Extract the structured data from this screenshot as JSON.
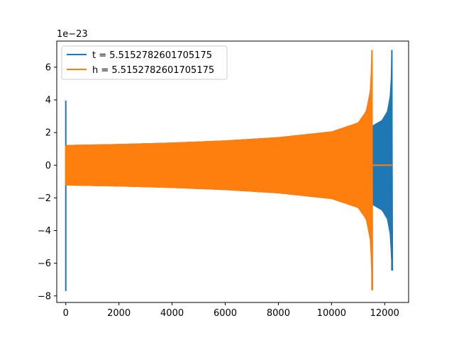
{
  "chart_data": {
    "type": "line",
    "title": "",
    "xlabel": "",
    "ylabel": "",
    "xlim": [
      -340,
      12900
    ],
    "ylim": [
      -8.4,
      7.6
    ],
    "y_offset_label": "1e−23",
    "x_ticks": [
      0,
      2000,
      4000,
      6000,
      8000,
      10000,
      12000
    ],
    "x_tick_labels": [
      "0",
      "2000",
      "4000",
      "6000",
      "8000",
      "10000",
      "12000"
    ],
    "y_ticks": [
      -8,
      -6,
      -4,
      -2,
      0,
      2,
      4,
      6
    ],
    "y_tick_labels": [
      "−8",
      "−6",
      "−4",
      "−2",
      "0",
      "2",
      "4",
      "6"
    ],
    "grid": false,
    "legend_position": "top-left",
    "series": [
      {
        "name": "t = 5.5152782601705175",
        "color": "#1f77b4",
        "spike_start": {
          "x": 0,
          "min": -7.7,
          "max": 3.95
        },
        "envelope": [
          {
            "x": 0,
            "amp": 1.22
          },
          {
            "x": 2000,
            "amp": 1.28
          },
          {
            "x": 4000,
            "amp": 1.37
          },
          {
            "x": 6000,
            "amp": 1.5
          },
          {
            "x": 8000,
            "amp": 1.7
          },
          {
            "x": 10000,
            "amp": 2.05
          },
          {
            "x": 11000,
            "amp": 2.25
          },
          {
            "x": 11530,
            "amp": 2.4
          },
          {
            "x": 11900,
            "amp": 2.75
          },
          {
            "x": 12100,
            "amp": 3.3
          },
          {
            "x": 12200,
            "amp": 4.2
          },
          {
            "x": 12250,
            "amp": 5.5
          }
        ],
        "spike_end": {
          "x": 12270,
          "min": -6.45,
          "max": 7.05
        },
        "end_x": 12280
      },
      {
        "name": "h = 5.5152782601705175",
        "color": "#ff7f0e",
        "spike_start": {
          "x": 0,
          "min": -1.2,
          "max": 1.2
        },
        "envelope": [
          {
            "x": 0,
            "amp": 1.22
          },
          {
            "x": 2000,
            "amp": 1.28
          },
          {
            "x": 4000,
            "amp": 1.37
          },
          {
            "x": 6000,
            "amp": 1.5
          },
          {
            "x": 8000,
            "amp": 1.7
          },
          {
            "x": 10000,
            "amp": 2.05
          },
          {
            "x": 11000,
            "amp": 2.6
          },
          {
            "x": 11300,
            "amp": 3.3
          },
          {
            "x": 11450,
            "amp": 4.5
          },
          {
            "x": 11500,
            "amp": 6.0
          }
        ],
        "spike_end": {
          "x": 11520,
          "min": -7.65,
          "max": 7.05
        },
        "flat_after": {
          "from": 11530,
          "to": 12280,
          "value": 0
        }
      }
    ]
  }
}
